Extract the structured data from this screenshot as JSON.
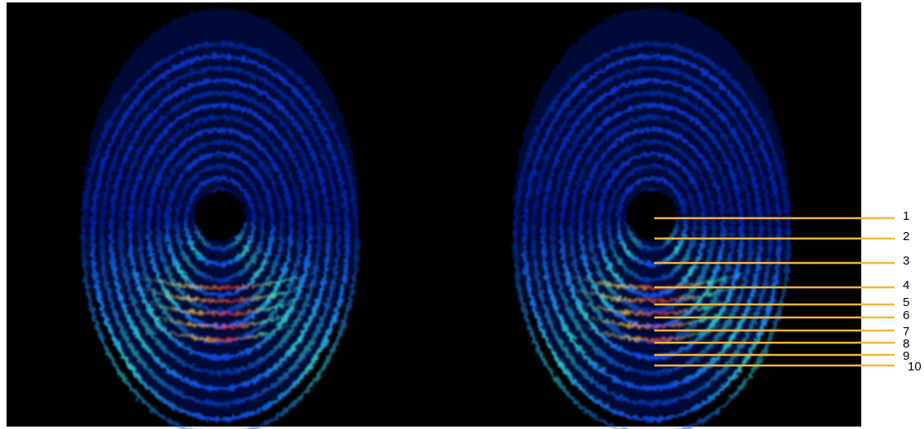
{
  "ring_labels": [
    "1",
    "2",
    "3",
    "4",
    "5",
    "6",
    "7",
    "8",
    "9",
    "10"
  ]
}
